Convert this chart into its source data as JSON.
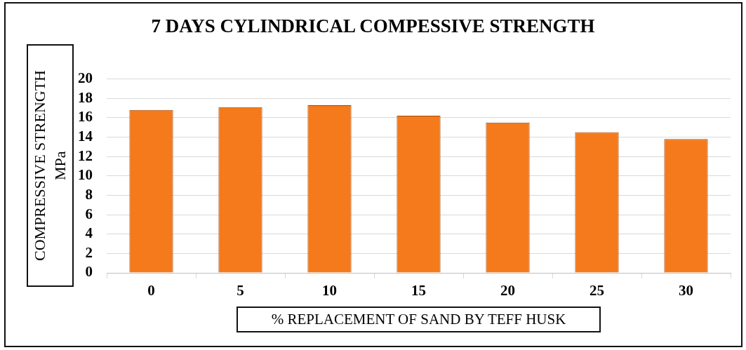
{
  "chart_data": {
    "type": "bar",
    "title": "7 DAYS CYLINDRICAL COMPESSIVE STRENGTH",
    "xlabel": "% REPLACEMENT OF SAND BY TEFF HUSK",
    "ylabel": "COMPRESSIVE STRENGTH\nMPa",
    "categories": [
      "0",
      "5",
      "10",
      "15",
      "20",
      "25",
      "30"
    ],
    "values": [
      16.8,
      17.1,
      17.3,
      16.2,
      15.5,
      14.5,
      13.8
    ],
    "color": "#f57a1c",
    "ylim": [
      0,
      20
    ],
    "yticks": [
      0,
      2,
      4,
      6,
      8,
      10,
      12,
      14,
      16,
      18,
      20
    ],
    "grid": "y"
  }
}
